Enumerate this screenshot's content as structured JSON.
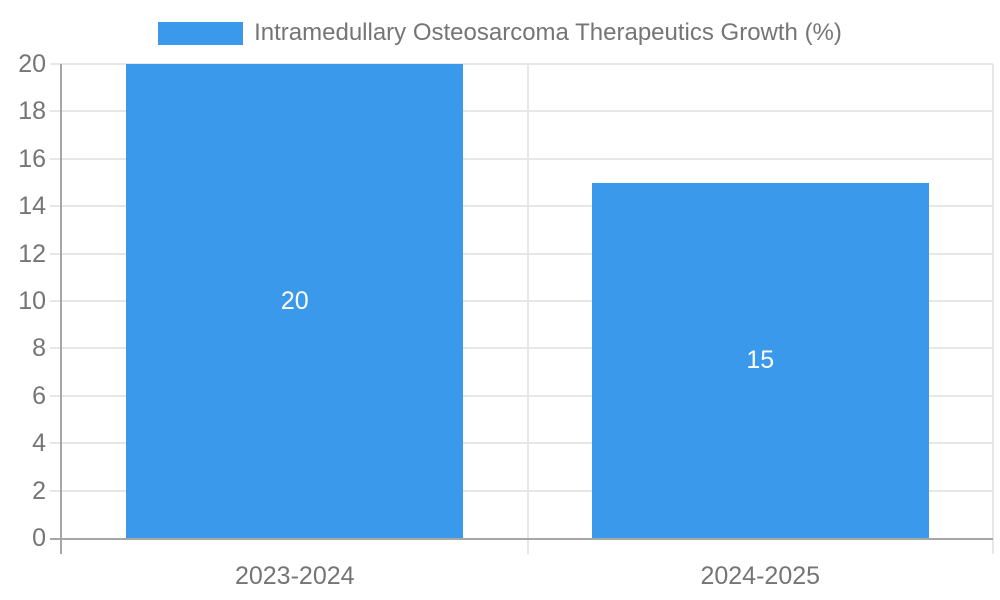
{
  "legend": {
    "label": "Intramedullary Osteosarcoma Therapeutics Growth (%)"
  },
  "chart_data": {
    "type": "bar",
    "title": "",
    "series_name": "Intramedullary Osteosarcoma Therapeutics Growth (%)",
    "categories": [
      "2023-2024",
      "2024-2025"
    ],
    "values": [
      20,
      15
    ],
    "data_labels": [
      "20",
      "15"
    ],
    "xlabel": "",
    "ylabel": "",
    "ylim": [
      0,
      20
    ],
    "ytick_step": 2,
    "ytick_labels": [
      "0",
      "2",
      "4",
      "6",
      "8",
      "10",
      "12",
      "14",
      "16",
      "18",
      "20"
    ],
    "grid": true,
    "legend_position": "top",
    "colors": {
      "bar": "#3B99EC",
      "grid": "#E7E7E7",
      "axis": "#A6A6A6",
      "text": "#757575",
      "data_label": "#FFFFFF",
      "background": "#FFFFFF"
    }
  }
}
